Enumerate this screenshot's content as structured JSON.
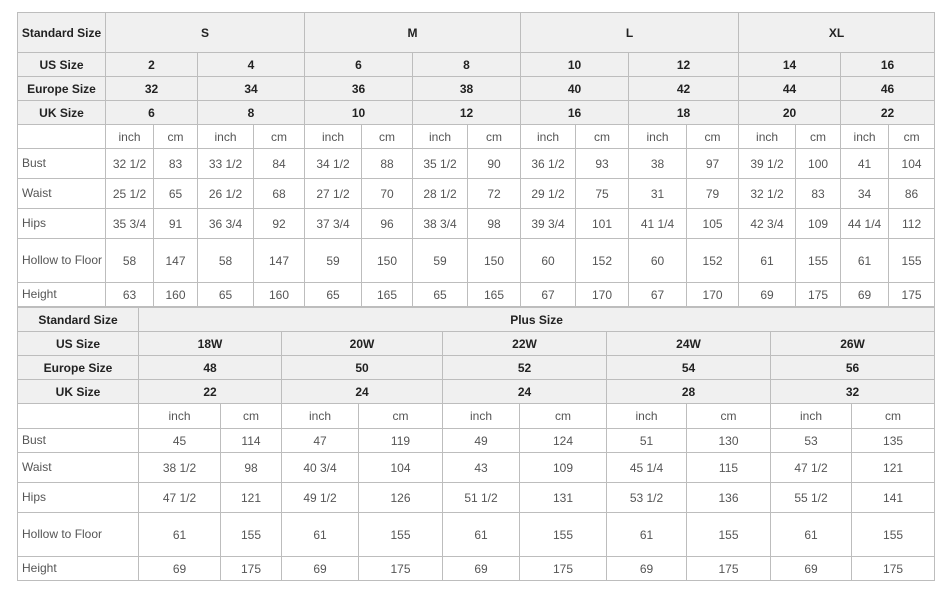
{
  "top_table": {
    "standard_label": "Standard Size",
    "groups": [
      "S",
      "M",
      "L",
      "XL"
    ],
    "us_label": "US Size",
    "us": [
      "2",
      "4",
      "6",
      "8",
      "10",
      "12",
      "14",
      "16"
    ],
    "europe_label": "Europe Size",
    "europe": [
      "32",
      "34",
      "36",
      "38",
      "40",
      "42",
      "44",
      "46"
    ],
    "uk_label": "UK Size",
    "uk": [
      "6",
      "8",
      "10",
      "12",
      "16",
      "18",
      "20",
      "22"
    ],
    "unit_inch": "inch",
    "unit_cm": "cm",
    "rows": [
      {
        "label": "Bust",
        "values": [
          "32 1/2",
          "83",
          "33 1/2",
          "84",
          "34 1/2",
          "88",
          "35 1/2",
          "90",
          "36 1/2",
          "93",
          "38",
          "97",
          "39 1/2",
          "100",
          "41",
          "104"
        ]
      },
      {
        "label": "Waist",
        "values": [
          "25 1/2",
          "65",
          "26 1/2",
          "68",
          "27 1/2",
          "70",
          "28 1/2",
          "72",
          "29 1/2",
          "75",
          "31",
          "79",
          "32 1/2",
          "83",
          "34",
          "86"
        ]
      },
      {
        "label": "Hips",
        "values": [
          "35 3/4",
          "91",
          "36 3/4",
          "92",
          "37 3/4",
          "96",
          "38 3/4",
          "98",
          "39 3/4",
          "101",
          "41 1/4",
          "105",
          "42 3/4",
          "109",
          "44 1/4",
          "112"
        ]
      },
      {
        "label": "Hollow to Floor",
        "values": [
          "58",
          "147",
          "58",
          "147",
          "59",
          "150",
          "59",
          "150",
          "60",
          "152",
          "60",
          "152",
          "61",
          "155",
          "61",
          "155"
        ]
      },
      {
        "label": "Height",
        "values": [
          "63",
          "160",
          "65",
          "160",
          "65",
          "165",
          "65",
          "165",
          "67",
          "170",
          "67",
          "170",
          "69",
          "175",
          "69",
          "175"
        ]
      }
    ]
  },
  "bottom_table": {
    "standard_label": "Standard Size",
    "group": "Plus Size",
    "us_label": "US Size",
    "us": [
      "18W",
      "20W",
      "22W",
      "24W",
      "26W"
    ],
    "europe_label": "Europe Size",
    "europe": [
      "48",
      "50",
      "52",
      "54",
      "56"
    ],
    "uk_label": "UK Size",
    "uk": [
      "22",
      "24",
      "24",
      "28",
      "32"
    ],
    "unit_inch": "inch",
    "unit_cm": "cm",
    "rows": [
      {
        "label": "Bust",
        "values": [
          "45",
          "114",
          "47",
          "119",
          "49",
          "124",
          "51",
          "130",
          "53",
          "135"
        ]
      },
      {
        "label": "Waist",
        "values": [
          "38 1/2",
          "98",
          "40 3/4",
          "104",
          "43",
          "109",
          "45 1/4",
          "115",
          "47 1/2",
          "121"
        ]
      },
      {
        "label": "Hips",
        "values": [
          "47 1/2",
          "121",
          "49 1/2",
          "126",
          "51 1/2",
          "131",
          "53 1/2",
          "136",
          "55 1/2",
          "141"
        ]
      },
      {
        "label": "Hollow to Floor",
        "values": [
          "61",
          "155",
          "61",
          "155",
          "61",
          "155",
          "61",
          "155",
          "61",
          "155"
        ]
      },
      {
        "label": "Height",
        "values": [
          "69",
          "175",
          "69",
          "175",
          "69",
          "175",
          "69",
          "175",
          "69",
          "175"
        ]
      }
    ]
  }
}
